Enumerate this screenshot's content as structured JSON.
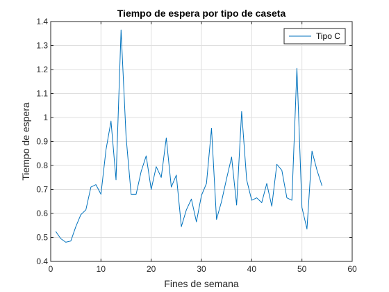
{
  "chart_data": {
    "type": "line",
    "title": "Tiempo de espera por tipo de caseta",
    "xlabel": "Fines de semana",
    "ylabel": "Tiempo de espera",
    "xlim": [
      0,
      60
    ],
    "ylim": [
      0.4,
      1.4
    ],
    "xticks": [
      0,
      10,
      20,
      30,
      40,
      50,
      60
    ],
    "yticks": [
      0.4,
      0.5,
      0.6,
      0.7,
      0.8,
      0.9,
      1.0,
      1.1,
      1.2,
      1.3,
      1.4
    ],
    "xtick_labels": [
      "0",
      "10",
      "20",
      "30",
      "40",
      "50",
      "60"
    ],
    "ytick_labels": [
      "0.4",
      "0.5",
      "0.6",
      "0.7",
      "0.8",
      "0.9",
      "1",
      "1.1",
      "1.2",
      "1.3",
      "1.4"
    ],
    "grid": true,
    "legend_position": "top-right",
    "series": [
      {
        "name": "Tipo C",
        "color": "#0072BD",
        "x": [
          1,
          2,
          3,
          4,
          5,
          6,
          7,
          8,
          9,
          10,
          11,
          12,
          13,
          14,
          15,
          16,
          17,
          18,
          19,
          20,
          21,
          22,
          23,
          24,
          25,
          26,
          27,
          28,
          29,
          30,
          31,
          32,
          33,
          34,
          35,
          36,
          37,
          38,
          39,
          40,
          41,
          42,
          43,
          44,
          45,
          46,
          47,
          48,
          49,
          50,
          51,
          52,
          53,
          54
        ],
        "y": [
          0.525,
          0.495,
          0.48,
          0.485,
          0.545,
          0.595,
          0.615,
          0.71,
          0.72,
          0.68,
          0.865,
          0.985,
          0.74,
          1.365,
          0.92,
          0.68,
          0.68,
          0.775,
          0.84,
          0.7,
          0.795,
          0.75,
          0.915,
          0.71,
          0.76,
          0.545,
          0.615,
          0.66,
          0.565,
          0.675,
          0.725,
          0.955,
          0.575,
          0.65,
          0.745,
          0.835,
          0.635,
          1.025,
          0.74,
          0.655,
          0.665,
          0.645,
          0.725,
          0.63,
          0.805,
          0.78,
          0.665,
          0.655,
          1.205,
          0.625,
          0.535,
          0.86,
          0.78,
          0.715
        ]
      }
    ]
  }
}
